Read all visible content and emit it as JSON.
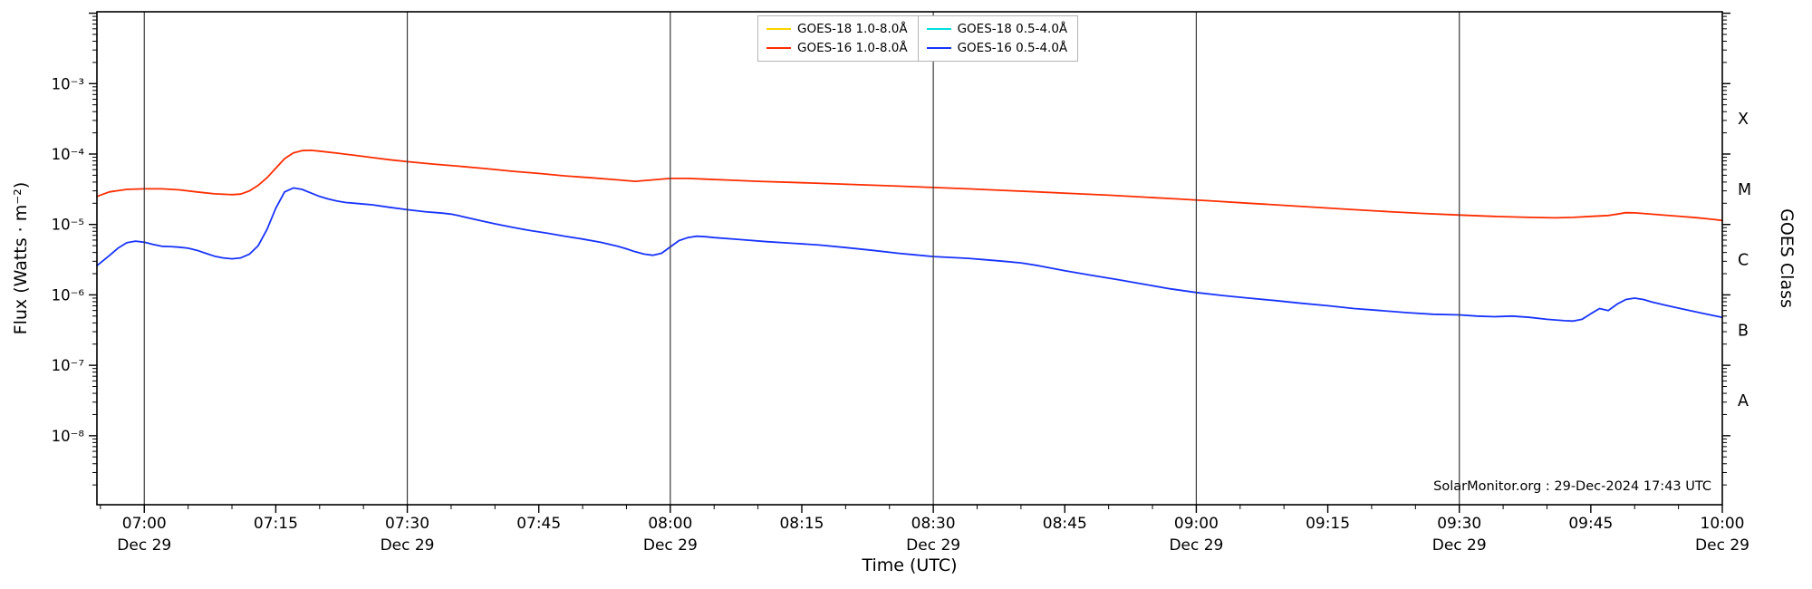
{
  "chart_data": {
    "type": "line",
    "xlabel": "Time (UTC)",
    "ylabel": "Flux (Watts · m⁻²)",
    "ylabel_right": "GOES Class",
    "annotation": "SolarMonitor.org : 29-Dec-2024 17:43 UTC",
    "x_axis": {
      "t_min": -5.4,
      "t_max": 180,
      "minor_step": 5,
      "gridline_minutes": [
        0,
        30,
        60,
        90,
        120,
        150
      ],
      "major_ticks": [
        {
          "t": 0,
          "label": "07:00",
          "sub": "Dec 29"
        },
        {
          "t": 15,
          "label": "07:15"
        },
        {
          "t": 30,
          "label": "07:30",
          "sub": "Dec 29"
        },
        {
          "t": 45,
          "label": "07:45"
        },
        {
          "t": 60,
          "label": "08:00",
          "sub": "Dec 29"
        },
        {
          "t": 75,
          "label": "08:15"
        },
        {
          "t": 90,
          "label": "08:30",
          "sub": "Dec 29"
        },
        {
          "t": 105,
          "label": "08:45"
        },
        {
          "t": 120,
          "label": "09:00",
          "sub": "Dec 29"
        },
        {
          "t": 135,
          "label": "09:15"
        },
        {
          "t": 150,
          "label": "09:30",
          "sub": "Dec 29"
        },
        {
          "t": 165,
          "label": "09:45"
        },
        {
          "t": 180,
          "label": "10:00",
          "sub": "Dec 29"
        }
      ]
    },
    "y_axis": {
      "scale": "log",
      "log_min": -8.98,
      "log_max": -1.98,
      "major_ticks": [
        {
          "log": -3,
          "label": "10⁻³"
        },
        {
          "log": -4,
          "label": "10⁻⁴"
        },
        {
          "log": -5,
          "label": "10⁻⁵"
        },
        {
          "log": -6,
          "label": "10⁻⁶"
        },
        {
          "log": -7,
          "label": "10⁻⁷"
        },
        {
          "log": -8,
          "label": "10⁻⁸"
        }
      ],
      "class_labels": [
        {
          "log": -3.5,
          "label": "X"
        },
        {
          "log": -4.5,
          "label": "M"
        },
        {
          "log": -5.5,
          "label": "C"
        },
        {
          "log": -6.5,
          "label": "B"
        },
        {
          "log": -7.5,
          "label": "A"
        }
      ]
    },
    "style": {
      "background": "#ffffff",
      "spine_color": "#000000",
      "grid_color": "#3a3a3a"
    },
    "legend": [
      {
        "label": "GOES-18 1.0-8.0Å",
        "color": "#ffd400"
      },
      {
        "label": "GOES-16 1.0-8.0Å",
        "color": "#ff2d00"
      },
      {
        "label": "GOES-18 0.5-4.0Å",
        "color": "#00dfe0"
      },
      {
        "label": "GOES-16 0.5-4.0Å",
        "color": "#1733ff"
      }
    ],
    "series": [
      {
        "id": "goes16-long",
        "name": "GOES-16 1.0-8.0Å",
        "color": "#ff2d00",
        "points": [
          [
            -5.4,
            2.5e-05
          ],
          [
            -4,
            2.9e-05
          ],
          [
            -2,
            3.15e-05
          ],
          [
            0,
            3.2e-05
          ],
          [
            2,
            3.2e-05
          ],
          [
            4,
            3.1e-05
          ],
          [
            6,
            2.9e-05
          ],
          [
            8,
            2.72e-05
          ],
          [
            10,
            2.65e-05
          ],
          [
            11,
            2.7e-05
          ],
          [
            12,
            3e-05
          ],
          [
            13,
            3.6e-05
          ],
          [
            14,
            4.6e-05
          ],
          [
            15,
            6.3e-05
          ],
          [
            16,
            8.6e-05
          ],
          [
            17,
            0.000104
          ],
          [
            18,
            0.000112
          ],
          [
            19,
            0.000113
          ],
          [
            20,
            0.00011
          ],
          [
            22,
            0.000103
          ],
          [
            24,
            9.6e-05
          ],
          [
            26,
            8.9e-05
          ],
          [
            28,
            8.3e-05
          ],
          [
            30,
            7.8e-05
          ],
          [
            33,
            7.2e-05
          ],
          [
            36,
            6.7e-05
          ],
          [
            39,
            6.2e-05
          ],
          [
            42,
            5.7e-05
          ],
          [
            45,
            5.3e-05
          ],
          [
            48,
            4.9e-05
          ],
          [
            51,
            4.6e-05
          ],
          [
            54,
            4.3e-05
          ],
          [
            56,
            4.1e-05
          ],
          [
            58,
            4.3e-05
          ],
          [
            60,
            4.5e-05
          ],
          [
            62,
            4.5e-05
          ],
          [
            64,
            4.4e-05
          ],
          [
            67,
            4.25e-05
          ],
          [
            70,
            4.1e-05
          ],
          [
            74,
            3.95e-05
          ],
          [
            78,
            3.8e-05
          ],
          [
            82,
            3.65e-05
          ],
          [
            86,
            3.5e-05
          ],
          [
            90,
            3.35e-05
          ],
          [
            94,
            3.2e-05
          ],
          [
            98,
            3.05e-05
          ],
          [
            102,
            2.9e-05
          ],
          [
            106,
            2.75e-05
          ],
          [
            110,
            2.6e-05
          ],
          [
            114,
            2.45e-05
          ],
          [
            118,
            2.3e-05
          ],
          [
            122,
            2.15e-05
          ],
          [
            126,
            2e-05
          ],
          [
            130,
            1.87e-05
          ],
          [
            134,
            1.74e-05
          ],
          [
            138,
            1.62e-05
          ],
          [
            142,
            1.52e-05
          ],
          [
            146,
            1.43e-05
          ],
          [
            150,
            1.36e-05
          ],
          [
            154,
            1.3e-05
          ],
          [
            158,
            1.26e-05
          ],
          [
            161,
            1.24e-05
          ],
          [
            163,
            1.26e-05
          ],
          [
            165,
            1.3e-05
          ],
          [
            167,
            1.34e-05
          ],
          [
            168,
            1.4e-05
          ],
          [
            169,
            1.47e-05
          ],
          [
            170,
            1.46e-05
          ],
          [
            171,
            1.43e-05
          ],
          [
            173,
            1.37e-05
          ],
          [
            175,
            1.31e-05
          ],
          [
            177,
            1.25e-05
          ],
          [
            179,
            1.18e-05
          ],
          [
            180,
            1.14e-05
          ]
        ]
      },
      {
        "id": "goes16-short",
        "name": "GOES-16 0.5-4.0Å",
        "color": "#1733ff",
        "points": [
          [
            -5.4,
            2.6e-06
          ],
          [
            -4,
            3.6e-06
          ],
          [
            -3,
            4.6e-06
          ],
          [
            -2,
            5.5e-06
          ],
          [
            -1,
            5.8e-06
          ],
          [
            0,
            5.6e-06
          ],
          [
            1,
            5.2e-06
          ],
          [
            2,
            4.9e-06
          ],
          [
            3,
            4.85e-06
          ],
          [
            4,
            4.75e-06
          ],
          [
            5,
            4.6e-06
          ],
          [
            6,
            4.3e-06
          ],
          [
            7,
            3.9e-06
          ],
          [
            8,
            3.55e-06
          ],
          [
            9,
            3.35e-06
          ],
          [
            10,
            3.25e-06
          ],
          [
            11,
            3.35e-06
          ],
          [
            12,
            3.8e-06
          ],
          [
            13,
            5e-06
          ],
          [
            14,
            8.5e-06
          ],
          [
            15,
            1.7e-05
          ],
          [
            16,
            2.9e-05
          ],
          [
            17,
            3.3e-05
          ],
          [
            18,
            3.15e-05
          ],
          [
            19,
            2.8e-05
          ],
          [
            20,
            2.5e-05
          ],
          [
            21,
            2.3e-05
          ],
          [
            22,
            2.15e-05
          ],
          [
            23,
            2.05e-05
          ],
          [
            24,
            2e-05
          ],
          [
            25,
            1.95e-05
          ],
          [
            26,
            1.9e-05
          ],
          [
            28,
            1.75e-05
          ],
          [
            30,
            1.62e-05
          ],
          [
            32,
            1.52e-05
          ],
          [
            34,
            1.45e-05
          ],
          [
            35,
            1.4e-05
          ],
          [
            36,
            1.32e-05
          ],
          [
            38,
            1.16e-05
          ],
          [
            40,
            1.02e-05
          ],
          [
            42,
            9.1e-06
          ],
          [
            44,
            8.2e-06
          ],
          [
            46,
            7.5e-06
          ],
          [
            48,
            6.8e-06
          ],
          [
            50,
            6.2e-06
          ],
          [
            52,
            5.6e-06
          ],
          [
            54,
            4.9e-06
          ],
          [
            55,
            4.5e-06
          ],
          [
            56,
            4.1e-06
          ],
          [
            57,
            3.8e-06
          ],
          [
            58,
            3.65e-06
          ],
          [
            59,
            3.9e-06
          ],
          [
            60,
            4.8e-06
          ],
          [
            61,
            5.9e-06
          ],
          [
            62,
            6.5e-06
          ],
          [
            63,
            6.8e-06
          ],
          [
            64,
            6.7e-06
          ],
          [
            65,
            6.5e-06
          ],
          [
            68,
            6.1e-06
          ],
          [
            71,
            5.7e-06
          ],
          [
            74,
            5.4e-06
          ],
          [
            77,
            5.1e-06
          ],
          [
            80,
            4.7e-06
          ],
          [
            83,
            4.3e-06
          ],
          [
            86,
            3.9e-06
          ],
          [
            88,
            3.7e-06
          ],
          [
            90,
            3.5e-06
          ],
          [
            92,
            3.4e-06
          ],
          [
            94,
            3.3e-06
          ],
          [
            96,
            3.15e-06
          ],
          [
            98,
            3e-06
          ],
          [
            100,
            2.85e-06
          ],
          [
            102,
            2.6e-06
          ],
          [
            105,
            2.2e-06
          ],
          [
            108,
            1.9e-06
          ],
          [
            111,
            1.65e-06
          ],
          [
            114,
            1.42e-06
          ],
          [
            117,
            1.22e-06
          ],
          [
            120,
            1.08e-06
          ],
          [
            123,
            9.8e-07
          ],
          [
            126,
            9e-07
          ],
          [
            129,
            8.3e-07
          ],
          [
            132,
            7.6e-07
          ],
          [
            135,
            7e-07
          ],
          [
            138,
            6.4e-07
          ],
          [
            141,
            6e-07
          ],
          [
            144,
            5.6e-07
          ],
          [
            147,
            5.3e-07
          ],
          [
            150,
            5.2e-07
          ],
          [
            152,
            5e-07
          ],
          [
            154,
            4.9e-07
          ],
          [
            156,
            5e-07
          ],
          [
            158,
            4.8e-07
          ],
          [
            160,
            4.5e-07
          ],
          [
            162,
            4.3e-07
          ],
          [
            163,
            4.25e-07
          ],
          [
            164,
            4.5e-07
          ],
          [
            165,
            5.4e-07
          ],
          [
            166,
            6.4e-07
          ],
          [
            167,
            6e-07
          ],
          [
            168,
            7.4e-07
          ],
          [
            169,
            8.6e-07
          ],
          [
            170,
            9e-07
          ],
          [
            171,
            8.6e-07
          ],
          [
            172,
            7.9e-07
          ],
          [
            174,
            6.9e-07
          ],
          [
            176,
            6.1e-07
          ],
          [
            178,
            5.4e-07
          ],
          [
            180,
            4.8e-07
          ]
        ]
      }
    ]
  }
}
